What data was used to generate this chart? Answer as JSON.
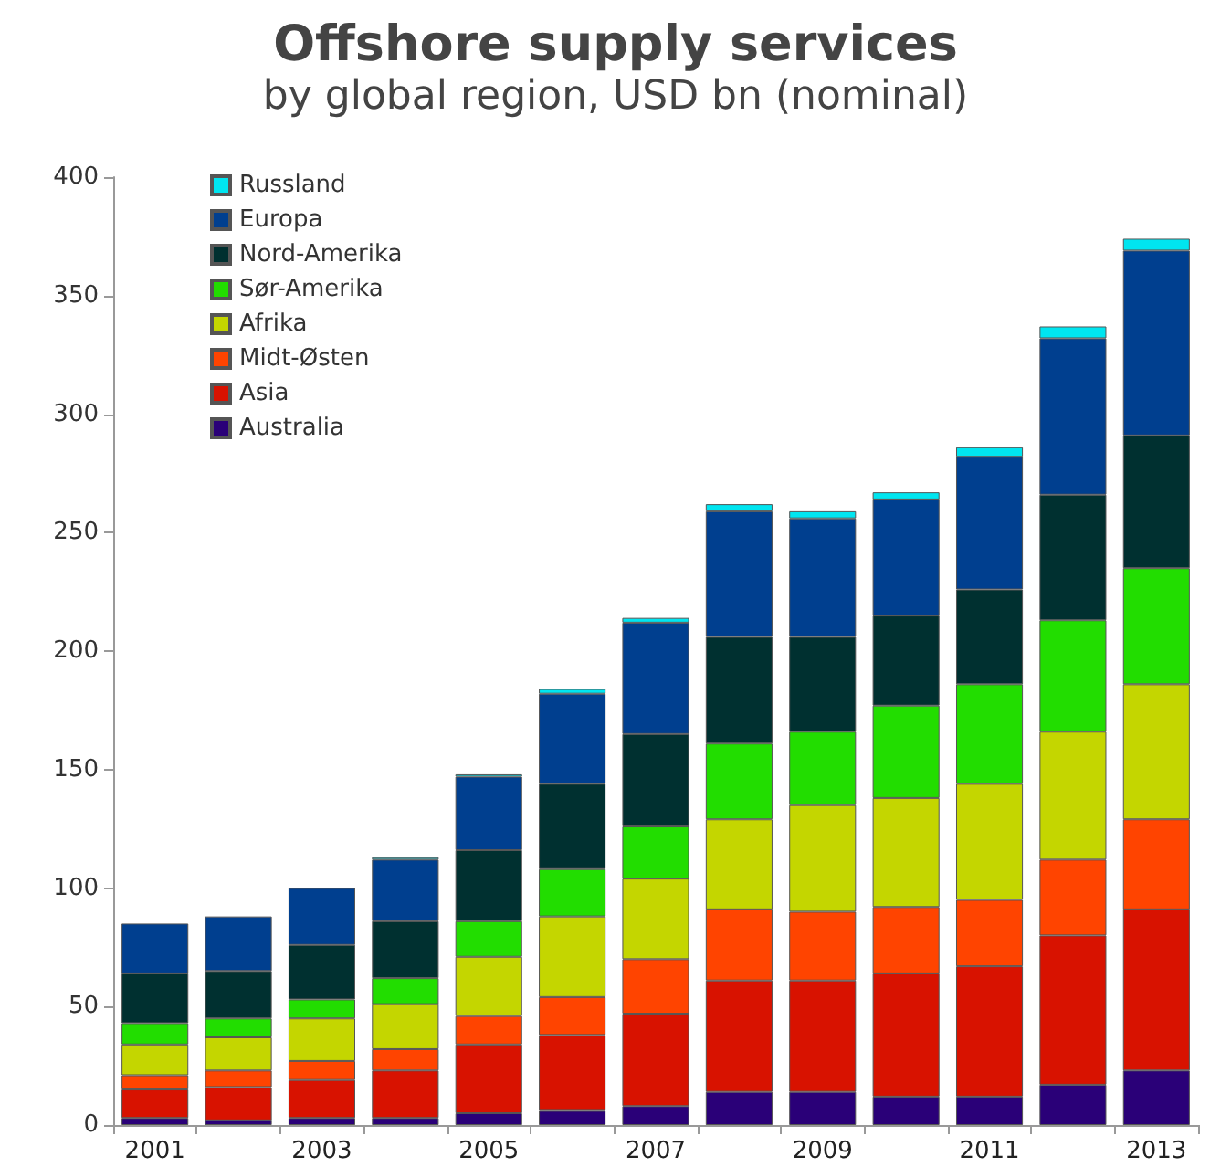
{
  "chart_data": {
    "type": "bar",
    "title": "Offshore supply services",
    "subtitle": "by global region, USD bn (nominal)",
    "categories": [
      "2001",
      null,
      "2003",
      null,
      "2005",
      null,
      "2007",
      null,
      "2009",
      null,
      "2011",
      null,
      "2013"
    ],
    "stacked": true,
    "ylim": [
      0,
      400
    ],
    "yticks": [
      0,
      50,
      100,
      150,
      200,
      250,
      300,
      350,
      400
    ],
    "grid": false,
    "legend": "top left",
    "series": [
      {
        "name": "Australia",
        "color": "#2a0078",
        "values": [
          3,
          2,
          3,
          3,
          5,
          6,
          8,
          14,
          14,
          12,
          12,
          17,
          23
        ]
      },
      {
        "name": "Asia",
        "color": "#d81200",
        "values": [
          12,
          14,
          16,
          20,
          29,
          32,
          39,
          47,
          47,
          52,
          55,
          63,
          68
        ]
      },
      {
        "name": "Midt-Østen",
        "color": "#ff4400",
        "values": [
          6,
          7,
          8,
          9,
          12,
          16,
          23,
          30,
          29,
          28,
          28,
          32,
          38
        ]
      },
      {
        "name": "Afrika",
        "color": "#c4d600",
        "values": [
          13,
          14,
          18,
          19,
          25,
          34,
          34,
          38,
          45,
          46,
          49,
          54,
          57
        ]
      },
      {
        "name": "Sør-Amerika",
        "color": "#22dd00",
        "values": [
          9,
          8,
          8,
          11,
          15,
          20,
          22,
          32,
          31,
          39,
          42,
          47,
          49
        ]
      },
      {
        "name": "Nord-Amerika",
        "color": "#003030",
        "values": [
          21,
          20,
          23,
          24,
          30,
          36,
          39,
          45,
          40,
          38,
          40,
          53,
          56
        ]
      },
      {
        "name": "Europa",
        "color": "#003f8f",
        "values": [
          21,
          23,
          24,
          26,
          31,
          38,
          47,
          53,
          50,
          49,
          56,
          66,
          78
        ]
      },
      {
        "name": "Russland",
        "color": "#00e5f0",
        "values": [
          null,
          null,
          null,
          1,
          1,
          2,
          2,
          3,
          3,
          3,
          4,
          5,
          5
        ]
      }
    ]
  }
}
